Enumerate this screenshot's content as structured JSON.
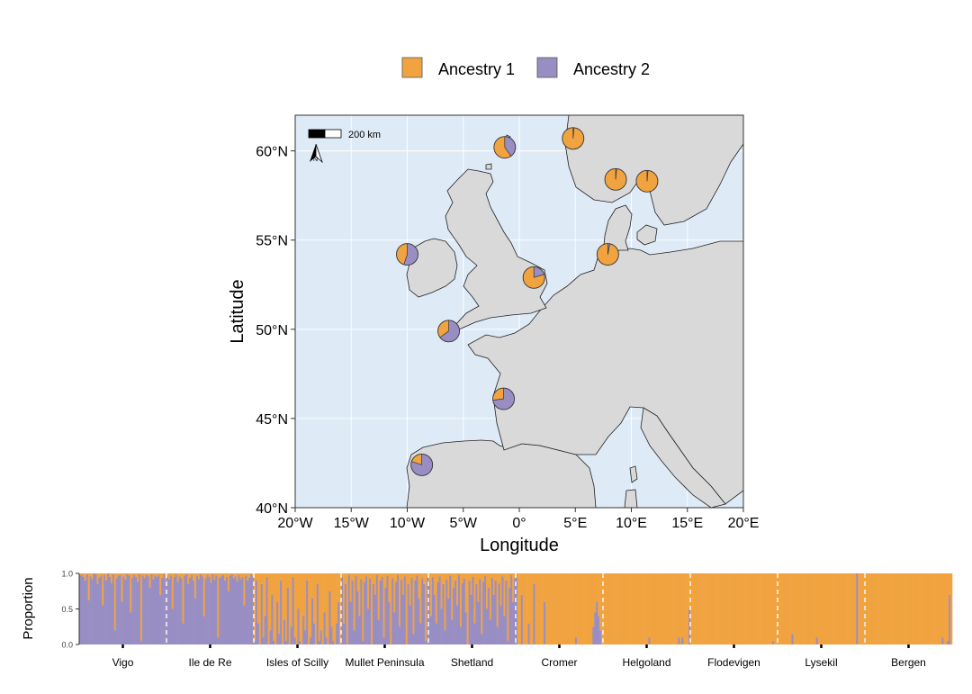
{
  "colors": {
    "ancestry1": "#f1a340",
    "ancestry2": "#998ec3",
    "land": "#d9d9d9",
    "sea": "#deebf7"
  },
  "legend": {
    "items": [
      "Ancestry 1",
      "Ancestry 2"
    ]
  },
  "chart_data": [
    {
      "type": "map-pie",
      "xlabel": "Longitude",
      "ylabel": "Latitude",
      "xlim": [
        -20,
        20
      ],
      "ylim": [
        40,
        62
      ],
      "x_ticks": [
        -20,
        -15,
        -10,
        -5,
        0,
        5,
        10,
        15,
        20
      ],
      "x_tick_labels": [
        "20°W",
        "15°W",
        "10°W",
        "5°W",
        "0°",
        "5°E",
        "10°E",
        "15°E",
        "20°E"
      ],
      "y_ticks": [
        40,
        45,
        50,
        55,
        60
      ],
      "y_tick_labels": [
        "40°N",
        "45°N",
        "50°N",
        "55°N",
        "60°N"
      ],
      "scale_bar_label": "200 km",
      "north_arrow_label": "N",
      "pies": [
        {
          "site": "Vigo",
          "lon": -8.7,
          "lat": 42.4,
          "ancestry1": 0.2,
          "ancestry2": 0.8
        },
        {
          "site": "Ile de Re",
          "lon": -1.4,
          "lat": 46.1,
          "ancestry1": 0.27,
          "ancestry2": 0.73
        },
        {
          "site": "Isles of Scilly",
          "lon": -6.3,
          "lat": 49.9,
          "ancestry1": 0.35,
          "ancestry2": 0.65
        },
        {
          "site": "Mullet Peninsula",
          "lon": -10.0,
          "lat": 54.2,
          "ancestry1": 0.45,
          "ancestry2": 0.55
        },
        {
          "site": "Shetland",
          "lon": -1.3,
          "lat": 60.2,
          "ancestry1": 0.6,
          "ancestry2": 0.4
        },
        {
          "site": "Cromer",
          "lon": 1.3,
          "lat": 52.9,
          "ancestry1": 0.8,
          "ancestry2": 0.2
        },
        {
          "site": "Helgoland",
          "lon": 7.9,
          "lat": 54.2,
          "ancestry1": 0.97,
          "ancestry2": 0.03
        },
        {
          "site": "Flodevigen",
          "lon": 8.6,
          "lat": 58.4,
          "ancestry1": 0.985,
          "ancestry2": 0.015
        },
        {
          "site": "Lysekil",
          "lon": 11.4,
          "lat": 58.3,
          "ancestry1": 0.985,
          "ancestry2": 0.015
        },
        {
          "site": "Bergen",
          "lon": 4.8,
          "lat": 60.7,
          "ancestry1": 0.985,
          "ancestry2": 0.015
        }
      ]
    },
    {
      "type": "bar",
      "stacked": true,
      "ylabel": "Proportion",
      "ylim": [
        0,
        1
      ],
      "y_ticks": [
        0.0,
        0.5,
        1.0
      ],
      "y_tick_labels": [
        "0.0",
        "0.5",
        "1.0"
      ],
      "series_names": [
        "Ancestry 1",
        "Ancestry 2"
      ],
      "populations": [
        {
          "name": "Vigo",
          "ancestry2": [
            0.97,
            0.98,
            0.95,
            0.9,
            0.99,
            0.62,
            0.96,
            0.92,
            1.0,
            0.99,
            0.85,
            0.94,
            0.97,
            0.55,
            0.98,
            0.9,
            1.0,
            0.95,
            0.86,
            0.99,
            0.2,
            0.93,
            0.97,
            0.98,
            0.6,
            0.96,
            0.91,
            0.99,
            0.97,
            0.45,
            0.94,
            0.98,
            0.95,
            0.88,
            0.99,
            0.05,
            0.97,
            0.93,
            0.98,
            0.96,
            0.8,
            0.99,
            0.92,
            0.97,
            0.95,
            0.98,
            0.7,
            0.94,
            0.99,
            0.9
          ]
        },
        {
          "name": "Ile de Re",
          "ancestry2": [
            0.98,
            0.92,
            0.97,
            0.5,
            0.95,
            0.99,
            0.88,
            0.96,
            0.93,
            0.3,
            0.97,
            0.99,
            0.85,
            0.94,
            0.98,
            0.9,
            0.65,
            0.97,
            0.92,
            0.99,
            0.96,
            0.4,
            0.93,
            0.98,
            0.95,
            0.87,
            0.99,
            0.91,
            0.97,
            0.1,
            0.94,
            0.96,
            0.98,
            0.9,
            0.95,
            0.75,
            0.97,
            0.99,
            0.93,
            0.96,
            0.89,
            0.98,
            0.92,
            0.95,
            0.55,
            0.97,
            0.9,
            0.94,
            0.99,
            0.96
          ]
        },
        {
          "name": "Isles of Scilly",
          "ancestry2": [
            0.05,
            0.9,
            0.3,
            0.0,
            0.85,
            0.1,
            0.4,
            0.95,
            0.0,
            0.2,
            0.7,
            0.05,
            0.0,
            0.6,
            0.15,
            0.9,
            0.0,
            0.35,
            0.05,
            0.8,
            0.0,
            0.25,
            0.95,
            0.1,
            0.0,
            0.5,
            0.05,
            0.0,
            0.4,
            0.2,
            0.9,
            0.0,
            0.1,
            0.65,
            0.3,
            0.0,
            0.85,
            0.05,
            0.2,
            0.0,
            0.45,
            0.1,
            0.0,
            0.75,
            0.25,
            0.05,
            0.0,
            0.3,
            0.6,
            0.0
          ]
        },
        {
          "name": "Mullet Peninsula",
          "ancestry2": [
            0.95,
            0.3,
            0.85,
            0.0,
            0.98,
            0.6,
            0.9,
            0.2,
            0.97,
            0.75,
            0.4,
            0.92,
            0.05,
            0.88,
            0.96,
            0.5,
            0.93,
            0.0,
            0.85,
            0.7,
            0.98,
            0.35,
            0.9,
            0.95,
            0.1,
            0.8,
            0.97,
            0.6,
            0.0,
            0.93,
            0.45,
            0.88,
            0.98,
            0.25,
            0.91,
            0.7,
            0.96,
            0.0,
            0.85,
            0.55,
            0.94,
            0.15,
            0.9,
            0.97,
            0.65,
            0.3,
            0.93,
            0.85,
            0.05,
            0.95
          ]
        },
        {
          "name": "Shetland",
          "ancestry2": [
            0.9,
            0.4,
            0.95,
            0.7,
            0.3,
            0.88,
            0.96,
            0.5,
            0.85,
            0.2,
            0.92,
            0.65,
            0.97,
            0.35,
            0.8,
            0.9,
            0.55,
            0.98,
            0.25,
            0.86,
            0.93,
            0.45,
            0.0,
            0.9,
            0.7,
            0.95,
            0.3,
            0.85,
            0.6,
            0.92,
            0.15,
            0.88,
            0.97,
            0.5,
            0.8,
            0.35,
            0.94,
            0.7,
            0.9,
            0.25,
            0.86,
            0.55,
            0.96,
            0.4,
            0.9,
            0.05,
            0.8,
            0.98,
            0.6,
            0.93
          ]
        },
        {
          "name": "Cromer",
          "ancestry2": [
            0.95,
            0.0,
            0.0,
            0.7,
            0.0,
            0.0,
            0.0,
            0.3,
            0.0,
            0.0,
            0.85,
            0.0,
            0.0,
            0.0,
            0.0,
            0.0,
            0.6,
            0.0,
            0.0,
            0.0,
            0.0,
            0.0,
            0.0,
            0.0,
            0.0,
            0.0,
            0.0,
            0.0,
            0.0,
            0.0,
            0.0,
            0.0,
            0.0,
            0.0,
            0.1,
            0.0,
            0.0,
            0.0,
            0.0,
            0.0,
            0.0,
            0.0,
            0.0,
            0.0,
            0.25,
            0.45,
            0.6,
            0.4,
            0.2,
            0.0
          ]
        },
        {
          "name": "Helgoland",
          "ancestry2": [
            0.0,
            0.0,
            0.0,
            0.0,
            0.0,
            0.0,
            0.0,
            0.0,
            0.0,
            0.0,
            0.0,
            0.0,
            0.0,
            0.0,
            0.0,
            0.0,
            0.0,
            0.0,
            0.0,
            0.0,
            0.0,
            0.0,
            0.0,
            0.0,
            0.0,
            0.0,
            0.1,
            0.0,
            0.0,
            0.0,
            0.0,
            0.0,
            0.0,
            0.0,
            0.0,
            0.0,
            0.0,
            0.0,
            0.0,
            0.0,
            0.0,
            0.0,
            0.0,
            0.1,
            0.0,
            0.1,
            0.0,
            0.0,
            0.0,
            0.5
          ]
        },
        {
          "name": "Flodevigen",
          "ancestry2": [
            0.0,
            0.0,
            0.0,
            0.0,
            0.0,
            0.0,
            0.0,
            0.0,
            0.0,
            0.0,
            0.0,
            0.0,
            0.0,
            0.0,
            0.0,
            0.0,
            0.0,
            0.0,
            0.0,
            0.0,
            0.0,
            0.0,
            0.0,
            0.0,
            0.0,
            0.0,
            0.0,
            0.0,
            0.0,
            0.0,
            0.0,
            0.0,
            0.0,
            0.0,
            0.0,
            0.0,
            0.0,
            0.0,
            0.0,
            0.0,
            0.0,
            0.0,
            0.0,
            0.0,
            0.0,
            0.0,
            0.0,
            0.05,
            0.0,
            0.0
          ]
        },
        {
          "name": "Lysekil",
          "ancestry2": [
            0.0,
            0.0,
            0.0,
            0.0,
            0.0,
            0.0,
            0.0,
            0.0,
            0.15,
            0.0,
            0.0,
            0.0,
            0.0,
            0.0,
            0.0,
            0.0,
            0.0,
            0.0,
            0.0,
            0.0,
            0.0,
            0.0,
            0.1,
            0.0,
            0.0,
            0.0,
            0.0,
            0.0,
            0.0,
            0.0,
            0.0,
            0.0,
            0.0,
            0.0,
            0.0,
            0.0,
            0.0,
            0.0,
            0.0,
            0.0,
            0.0,
            0.0,
            0.0,
            0.0,
            0.0,
            1.0,
            0.0,
            0.0,
            0.0,
            0.0
          ]
        },
        {
          "name": "Bergen",
          "ancestry2": [
            0.0,
            0.0,
            0.0,
            0.0,
            0.0,
            0.0,
            0.0,
            0.0,
            0.0,
            0.0,
            0.0,
            0.0,
            0.0,
            0.0,
            0.0,
            0.0,
            0.0,
            0.0,
            0.0,
            0.0,
            0.0,
            0.0,
            0.0,
            0.0,
            0.0,
            0.0,
            0.0,
            0.0,
            0.0,
            0.0,
            0.0,
            0.0,
            0.0,
            0.0,
            0.0,
            0.0,
            0.0,
            0.0,
            0.0,
            0.0,
            0.0,
            0.0,
            0.0,
            0.0,
            0.1,
            0.0,
            0.0,
            0.05,
            0.7,
            0.0
          ]
        }
      ]
    }
  ]
}
